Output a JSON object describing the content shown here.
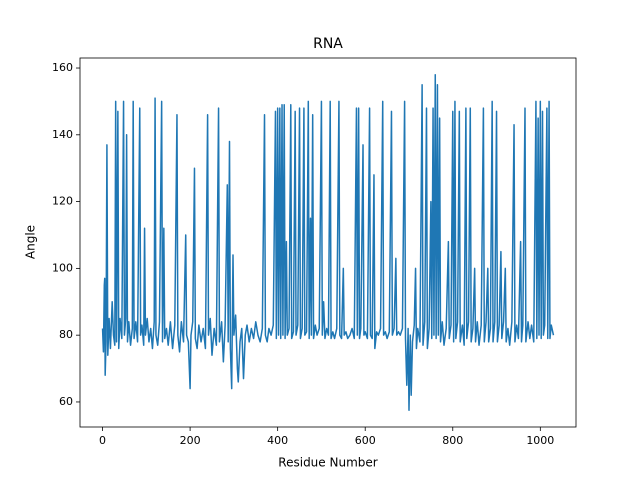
{
  "chart_data": {
    "type": "line",
    "title": "RNA",
    "x_label": "Residue Number",
    "y_label": "Angle",
    "xlim": [
      -51.5,
      1081.5
    ],
    "ylim": [
      52.5,
      163
    ],
    "xticks": [
      0,
      200,
      400,
      600,
      800,
      1000
    ],
    "yticks": [
      60,
      80,
      100,
      120,
      140,
      160
    ],
    "x": [
      0,
      2,
      4,
      5,
      6,
      8,
      10,
      12,
      15,
      18,
      22,
      25,
      28,
      30,
      32,
      35,
      37,
      40,
      44,
      48,
      50,
      53,
      55,
      57,
      60,
      64,
      68,
      70,
      72,
      76,
      80,
      85,
      87,
      90,
      94,
      96,
      98,
      102,
      106,
      110,
      114,
      118,
      120,
      122,
      126,
      130,
      135,
      137,
      140,
      142,
      146,
      150,
      155,
      160,
      165,
      170,
      172,
      176,
      180,
      185,
      190,
      192,
      196,
      200,
      202,
      206,
      210,
      212,
      216,
      220,
      225,
      230,
      235,
      240,
      242,
      246,
      250,
      255,
      260,
      265,
      267,
      272,
      276,
      280,
      285,
      287,
      290,
      292,
      295,
      298,
      300,
      304,
      308,
      310,
      314,
      318,
      322,
      326,
      330,
      335,
      340,
      345,
      350,
      355,
      360,
      365,
      370,
      372,
      376,
      380,
      385,
      390,
      395,
      397,
      400,
      402,
      405,
      407,
      410,
      412,
      415,
      417,
      420,
      422,
      426,
      430,
      432,
      436,
      440,
      442,
      446,
      450,
      452,
      456,
      460,
      462,
      466,
      470,
      472,
      475,
      477,
      480,
      482,
      486,
      490,
      495,
      500,
      502,
      505,
      508,
      512,
      516,
      520,
      522,
      526,
      530,
      535,
      540,
      542,
      546,
      550,
      552,
      556,
      560,
      565,
      570,
      575,
      580,
      582,
      585,
      587,
      590,
      595,
      597,
      600,
      605,
      610,
      612,
      616,
      620,
      622,
      626,
      630,
      635,
      640,
      642,
      646,
      650,
      655,
      660,
      662,
      666,
      670,
      672,
      676,
      680,
      685,
      690,
      692,
      695,
      698,
      700,
      703,
      705,
      708,
      712,
      715,
      717,
      720,
      725,
      730,
      732,
      736,
      740,
      742,
      746,
      750,
      752,
      755,
      757,
      760,
      762,
      765,
      767,
      770,
      772,
      776,
      780,
      785,
      790,
      792,
      796,
      800,
      802,
      805,
      807,
      811,
      815,
      817,
      822,
      826,
      830,
      832,
      836,
      840,
      842,
      846,
      850,
      852,
      856,
      860,
      865,
      870,
      872,
      876,
      880,
      882,
      886,
      890,
      892,
      896,
      900,
      902,
      906,
      910,
      912,
      916,
      920,
      922,
      926,
      930,
      935,
      940,
      942,
      946,
      950,
      955,
      957,
      960,
      965,
      967,
      972,
      976,
      980,
      985,
      990,
      992,
      995,
      997,
      1000,
      1002,
      1005,
      1007,
      1010,
      1015,
      1017,
      1020,
      1022,
      1025,
      1030
    ],
    "series": [
      {
        "color": "#1f77b4",
        "values": [
          82,
          75,
          95,
          97,
          68,
          78,
          137,
          74,
          85,
          76,
          90,
          80,
          77,
          150,
          78,
          147,
          76,
          85,
          79,
          150,
          80,
          85,
          140,
          78,
          84,
          77,
          82,
          150,
          79,
          84,
          78,
          148,
          80,
          83,
          77,
          112,
          80,
          85,
          78,
          82,
          76,
          84,
          151,
          80,
          77,
          84,
          150,
          78,
          112,
          79,
          82,
          77,
          84,
          76,
          83,
          146,
          80,
          75,
          84,
          78,
          110,
          80,
          78,
          64,
          80,
          84,
          130,
          79,
          76,
          83,
          78,
          82,
          76,
          146,
          80,
          85,
          74,
          82,
          77,
          148,
          78,
          84,
          72,
          83,
          125,
          78,
          138,
          76,
          64,
          104,
          80,
          86,
          70,
          66,
          78,
          82,
          67,
          80,
          83,
          78,
          82,
          79,
          84,
          80,
          78,
          82,
          146,
          80,
          78,
          82,
          80,
          83,
          147,
          79,
          148,
          80,
          148,
          79,
          149,
          80,
          149,
          79,
          108,
          80,
          82,
          149,
          79,
          81,
          147,
          80,
          83,
          148,
          79,
          82,
          148,
          80,
          81,
          150,
          79,
          115,
          80,
          146,
          79,
          83,
          80,
          82,
          150,
          80,
          90,
          79,
          82,
          80,
          150,
          79,
          81,
          79,
          82,
          150,
          80,
          79,
          100,
          80,
          81,
          79,
          80,
          82,
          79,
          148,
          80,
          148,
          79,
          82,
          137,
          80,
          81,
          79,
          148,
          80,
          79,
          128,
          76,
          81,
          80,
          82,
          150,
          80,
          81,
          79,
          81,
          147,
          80,
          82,
          103,
          80,
          81,
          80,
          82,
          150,
          79,
          65,
          82,
          57.5,
          80,
          62,
          78,
          83,
          100,
          76,
          82,
          78,
          155,
          77,
          84,
          148,
          76,
          82,
          120,
          79,
          148,
          80,
          158,
          79,
          155,
          80,
          145,
          78,
          84,
          77,
          82,
          108,
          79,
          83,
          147,
          78,
          150,
          79,
          84,
          147,
          78,
          83,
          77,
          148,
          79,
          84,
          148,
          78,
          82,
          100,
          78,
          84,
          77,
          83,
          148,
          78,
          84,
          100,
          78,
          82,
          150,
          78,
          84,
          147,
          78,
          83,
          105,
          79,
          84,
          100,
          78,
          82,
          77,
          84,
          143,
          78,
          83,
          79,
          108,
          78,
          83,
          148,
          78,
          84,
          79,
          83,
          78,
          150,
          79,
          145,
          80,
          150,
          79,
          147,
          80,
          83,
          148,
          79,
          150,
          79,
          83,
          80
        ]
      }
    ]
  }
}
